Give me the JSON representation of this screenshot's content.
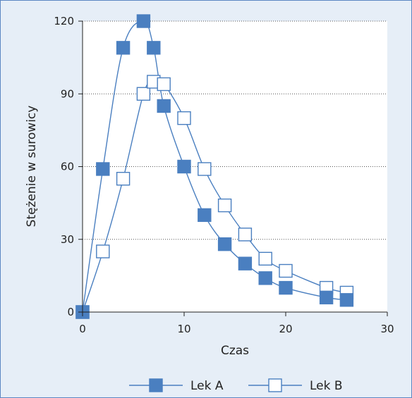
{
  "chart_data": {
    "type": "line",
    "xlabel": "Czas",
    "ylabel": "Stężenie w surowicy",
    "xlim": [
      0,
      30
    ],
    "ylim": [
      0,
      120
    ],
    "xticks": [
      0,
      10,
      20,
      30
    ],
    "yticks": [
      0,
      30,
      60,
      90,
      120
    ],
    "grid": "horizontal-dotted",
    "legend_position": "bottom",
    "series": [
      {
        "name": "Lek A",
        "marker": "filled-square",
        "color": "#4a7fc0",
        "x": [
          0,
          2,
          4,
          6,
          7,
          8,
          10,
          12,
          14,
          16,
          18,
          20,
          24,
          26
        ],
        "y": [
          0,
          59,
          109,
          120,
          109,
          85,
          60,
          40,
          28,
          20,
          14,
          10,
          6,
          5
        ]
      },
      {
        "name": "Lek B",
        "marker": "hollow-square",
        "color": "#4a7fc0",
        "x": [
          0,
          2,
          4,
          6,
          7,
          8,
          10,
          12,
          14,
          16,
          18,
          20,
          24,
          26
        ],
        "y": [
          0,
          25,
          55,
          90,
          95,
          94,
          80,
          59,
          44,
          32,
          22,
          17,
          10,
          8
        ]
      }
    ]
  }
}
